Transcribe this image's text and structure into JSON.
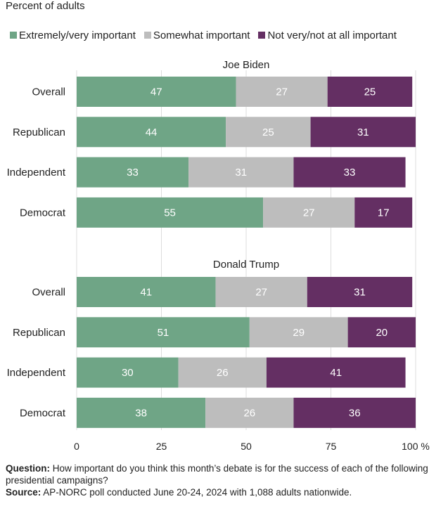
{
  "header": {
    "subtitle": "Percent of adults"
  },
  "legend": [
    {
      "label": "Extremely/very important",
      "color": "#6fa586"
    },
    {
      "label": "Somewhat important",
      "color": "#bdbdbd"
    },
    {
      "label": "Not very/not at all important",
      "color": "#642f63"
    }
  ],
  "footer": {
    "question_label": "Question:",
    "question_text": "How important do you think this month’s debate is for the success of each of the following presidential campaigns?",
    "source_label": "Source:",
    "source_text": "AP-NORC poll conducted June 20-24, 2024 with 1,088 adults nationwide."
  },
  "chart_data": {
    "type": "bar",
    "orientation": "horizontal",
    "stacked": true,
    "xlim": [
      0,
      100
    ],
    "x_ticks": [
      "0",
      "25",
      "50",
      "75",
      "100 %"
    ],
    "grid": true,
    "legend_placement": "top",
    "series_names": [
      "Extremely/very important",
      "Somewhat important",
      "Not very/not at all important"
    ],
    "colors": [
      "#6fa586",
      "#bdbdbd",
      "#642f63"
    ],
    "groups": [
      {
        "title": "Joe Biden",
        "categories": [
          "Overall",
          "Republican",
          "Independent",
          "Democrat"
        ],
        "values": [
          [
            47,
            27,
            25
          ],
          [
            44,
            25,
            31
          ],
          [
            33,
            31,
            33
          ],
          [
            55,
            27,
            17
          ]
        ]
      },
      {
        "title": "Donald Trump",
        "categories": [
          "Overall",
          "Republican",
          "Independent",
          "Democrat"
        ],
        "values": [
          [
            41,
            27,
            31
          ],
          [
            51,
            29,
            20
          ],
          [
            30,
            26,
            41
          ],
          [
            38,
            26,
            36
          ]
        ]
      }
    ]
  }
}
